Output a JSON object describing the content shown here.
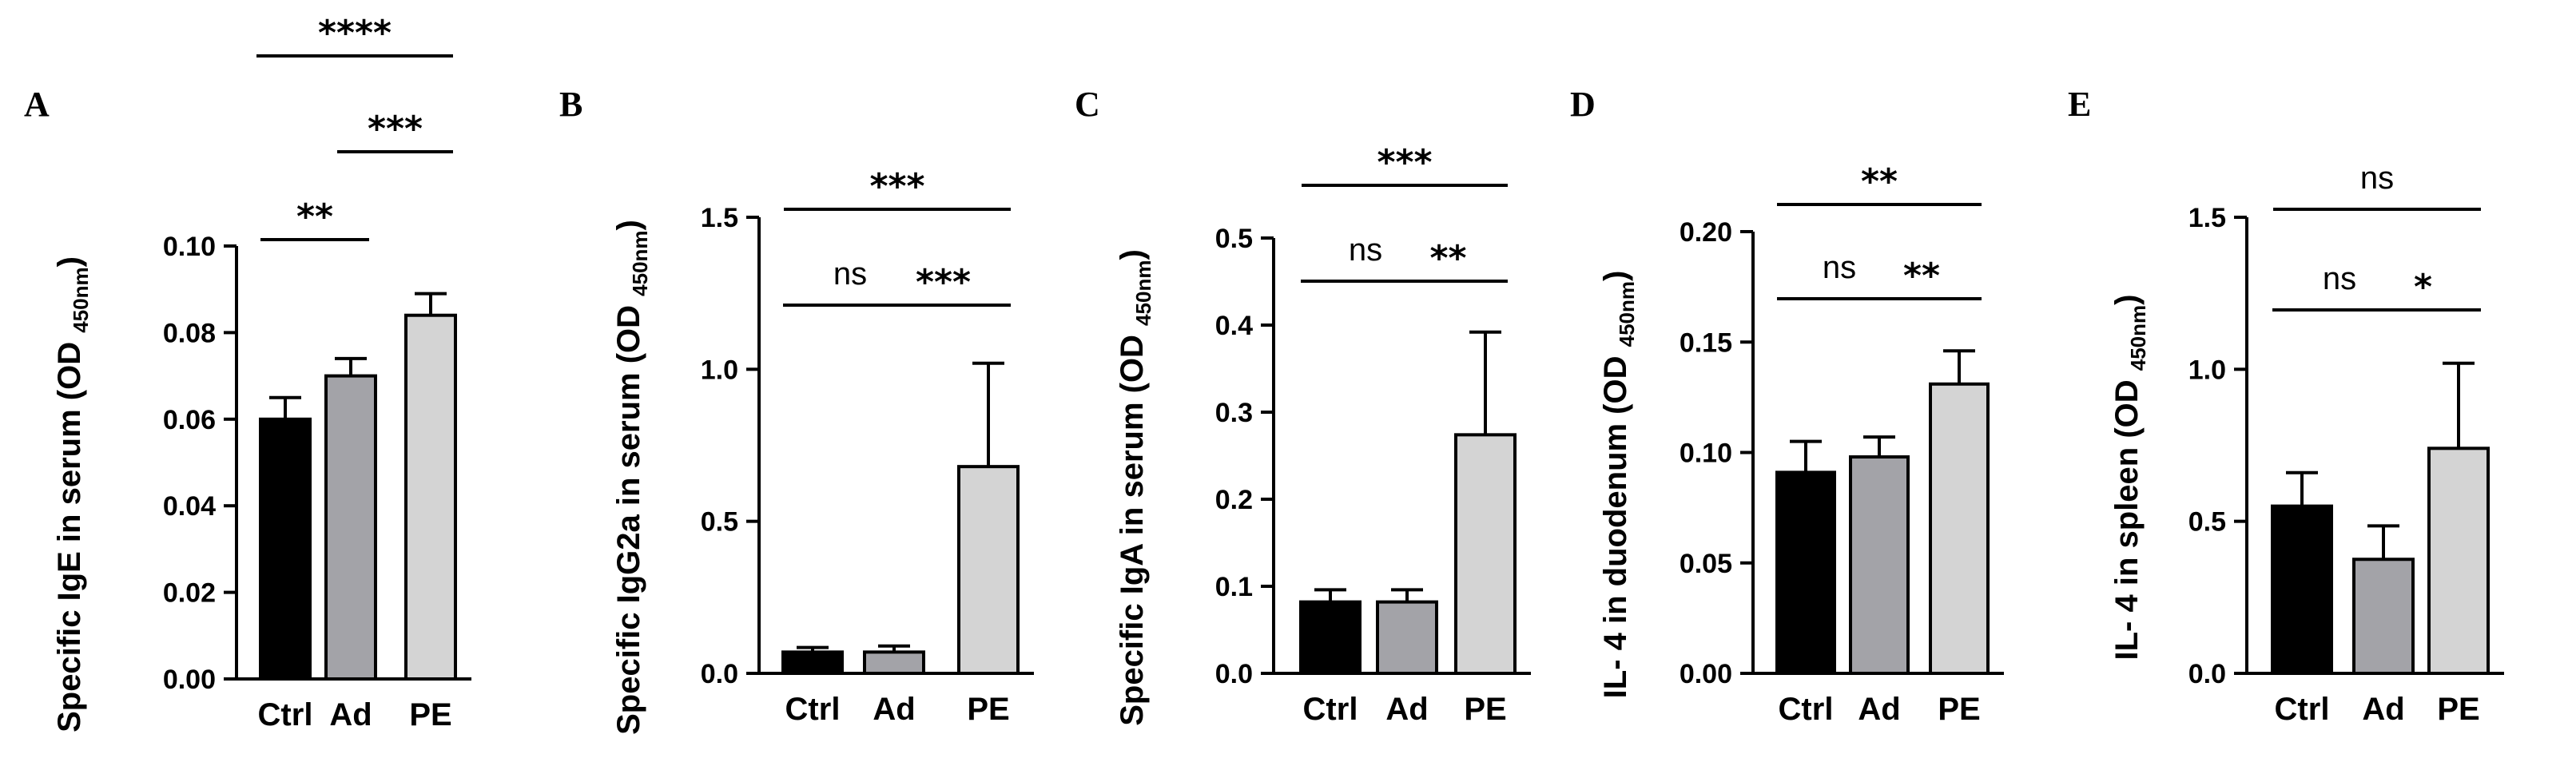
{
  "chart_data": [
    {
      "panel": "A",
      "type": "bar",
      "ylabel_main": "Specific IgE in serum (OD",
      "ylabel_sub": "450nm",
      "ylabel_close": ")",
      "categories": [
        "Ctrl",
        "Ad",
        "PE"
      ],
      "values": [
        0.06,
        0.07,
        0.084
      ],
      "errors": [
        0.005,
        0.004,
        0.005
      ],
      "colors": [
        "#000000",
        "#a3a3a8",
        "#d4d4d4"
      ],
      "ylim": [
        0,
        0.1
      ],
      "yticks": [
        0,
        0.02,
        0.04,
        0.06,
        0.08,
        0.1
      ],
      "ytick_labels": [
        "0.00",
        "0.02",
        "0.04",
        "0.06",
        "0.08",
        "0.10"
      ],
      "significance": [
        {
          "from": 0,
          "to": 1,
          "label": "**",
          "level": 0
        },
        {
          "from": 1,
          "to": 2,
          "label": "***",
          "level": 1
        },
        {
          "from": 0,
          "to": 2,
          "label": "****",
          "level": 2
        }
      ]
    },
    {
      "panel": "B",
      "type": "bar",
      "ylabel_main": "Specific IgG2a in serum (OD",
      "ylabel_sub": "450nm",
      "ylabel_close": ")",
      "categories": [
        "Ctrl",
        "Ad",
        "PE"
      ],
      "values": [
        0.07,
        0.07,
        0.68
      ],
      "errors": [
        0.015,
        0.02,
        0.34
      ],
      "colors": [
        "#000000",
        "#a3a3a8",
        "#d4d4d4"
      ],
      "ylim": [
        0,
        1.5
      ],
      "yticks": [
        0,
        0.5,
        1.0,
        1.5
      ],
      "ytick_labels": [
        "0.0",
        "0.5",
        "1.0",
        "1.5"
      ],
      "significance": [
        {
          "from": 0,
          "to": 1,
          "label": "ns",
          "level": 0
        },
        {
          "from": 1,
          "to": 2,
          "label": "***",
          "level": 0
        },
        {
          "from": 0,
          "to": 2,
          "label": "***",
          "level": 1
        }
      ]
    },
    {
      "panel": "C",
      "type": "bar",
      "ylabel_main": "Specific IgA in serum (OD",
      "ylabel_sub": "450nm",
      "ylabel_close": ")",
      "categories": [
        "Ctrl",
        "Ad",
        "PE"
      ],
      "values": [
        0.082,
        0.082,
        0.274
      ],
      "errors": [
        0.014,
        0.014,
        0.118
      ],
      "colors": [
        "#000000",
        "#a3a3a8",
        "#d4d4d4"
      ],
      "ylim": [
        0,
        0.5
      ],
      "yticks": [
        0,
        0.1,
        0.2,
        0.3,
        0.4,
        0.5
      ],
      "ytick_labels": [
        "0.0",
        "0.1",
        "0.2",
        "0.3",
        "0.4",
        "0.5"
      ],
      "significance": [
        {
          "from": 0,
          "to": 1,
          "label": "ns",
          "level": 0
        },
        {
          "from": 1,
          "to": 2,
          "label": "**",
          "level": 0
        },
        {
          "from": 0,
          "to": 2,
          "label": "***",
          "level": 1
        }
      ]
    },
    {
      "panel": "D",
      "type": "bar",
      "ylabel_main": "IL- 4 in duodenum (OD",
      "ylabel_sub": "450nm",
      "ylabel_close": ")",
      "categories": [
        "Ctrl",
        "Ad",
        "PE"
      ],
      "values": [
        0.091,
        0.098,
        0.131
      ],
      "errors": [
        0.014,
        0.009,
        0.015
      ],
      "colors": [
        "#000000",
        "#a3a3a8",
        "#d4d4d4"
      ],
      "ylim": [
        0,
        0.2
      ],
      "yticks": [
        0,
        0.05,
        0.1,
        0.15,
        0.2
      ],
      "ytick_labels": [
        "0.00",
        "0.05",
        "0.10",
        "0.15",
        "0.20"
      ],
      "significance": [
        {
          "from": 0,
          "to": 1,
          "label": "ns",
          "level": 0
        },
        {
          "from": 1,
          "to": 2,
          "label": "**",
          "level": 0
        },
        {
          "from": 0,
          "to": 2,
          "label": "**",
          "level": 1
        }
      ]
    },
    {
      "panel": "E",
      "type": "bar",
      "ylabel_main": "IL- 4 in spleen  (OD",
      "ylabel_sub": "450nm",
      "ylabel_close": ")",
      "categories": [
        "Ctrl",
        "Ad",
        "PE"
      ],
      "values": [
        0.55,
        0.375,
        0.74
      ],
      "errors": [
        0.11,
        0.11,
        0.28
      ],
      "colors": [
        "#000000",
        "#a3a3a8",
        "#d4d4d4"
      ],
      "ylim": [
        0,
        1.5
      ],
      "yticks": [
        0,
        0.5,
        1.0,
        1.5
      ],
      "ytick_labels": [
        "0.0",
        "0.5",
        "1.0",
        "1.5"
      ],
      "significance": [
        {
          "from": 0,
          "to": 1,
          "label": "ns",
          "level": 0
        },
        {
          "from": 1,
          "to": 2,
          "label": "*",
          "level": 0
        },
        {
          "from": 0,
          "to": 2,
          "label": "ns",
          "level": 1
        }
      ]
    }
  ]
}
